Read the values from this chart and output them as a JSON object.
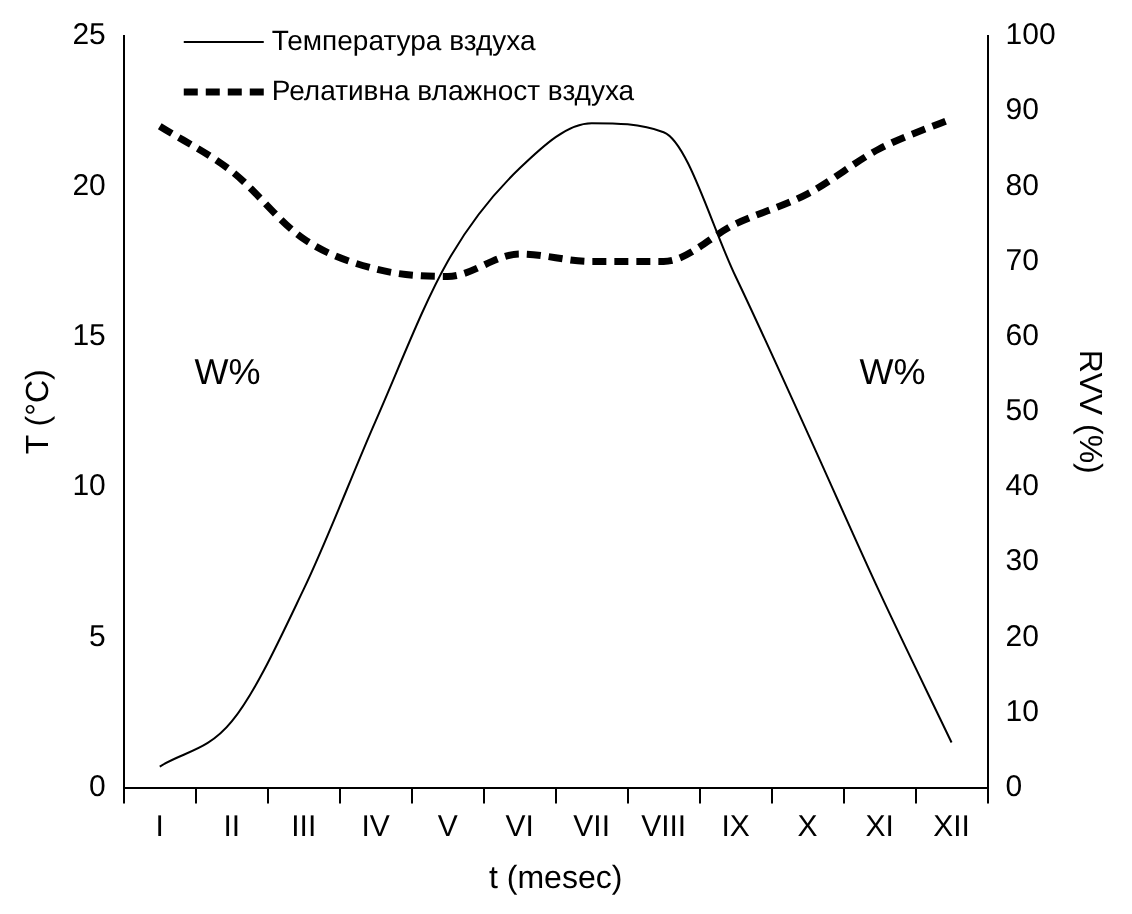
{
  "chart_data": {
    "type": "line",
    "categories": [
      "I",
      "II",
      "III",
      "IV",
      "V",
      "VI",
      "VII",
      "VIII",
      "IX",
      "X",
      "XI",
      "XII"
    ],
    "series": [
      {
        "name": "Температура вздуха",
        "color": "#000000",
        "values": [
          0.7,
          2.2,
          6.6,
          12.2,
          17.5,
          20.6,
          22.1,
          21.8,
          17,
          11.8,
          6.5,
          1.5
        ],
        "line_style": "solid"
      },
      {
        "name": "Релативна влажност вздуха",
        "color": "#000000",
        "values": [
          88,
          82,
          73,
          69,
          68,
          71,
          70,
          70,
          75,
          79,
          85,
          89
        ],
        "axis": "y2",
        "line_style": "dashed"
      }
    ],
    "xlabel": "t (mesec)",
    "ylabel": "T (°C)",
    "y2label": "RVV (%)",
    "ylim": [
      0,
      25
    ],
    "yticks": [
      0,
      5,
      10,
      15,
      20,
      25
    ],
    "y2lim": [
      0,
      100
    ],
    "y2ticks": [
      0,
      10,
      20,
      30,
      40,
      50,
      60,
      70,
      80,
      90,
      100
    ],
    "annotations": [
      "W%",
      "W%"
    ],
    "legend": "top left",
    "grid": false,
    "marker": "none"
  }
}
